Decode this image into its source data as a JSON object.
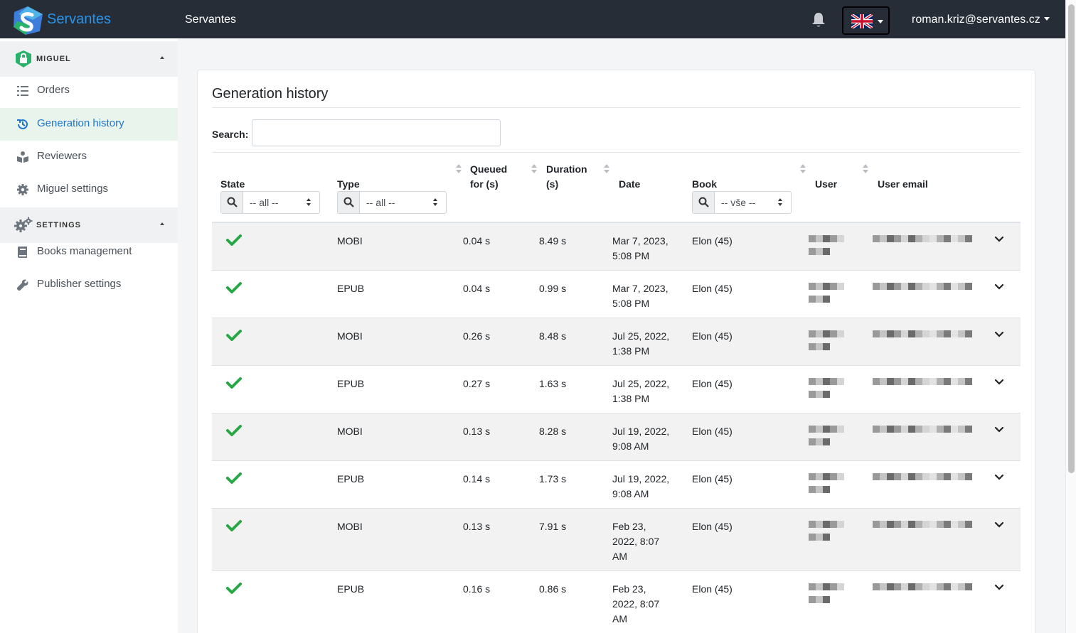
{
  "header": {
    "logo_text": "Servantes",
    "app_title": "Servantes",
    "user_email": "roman.kriz@servantes.cz",
    "icons": {
      "notifications": "bell-icon",
      "language": "uk-flag-icon"
    }
  },
  "sidebar": {
    "sections": [
      {
        "title": "MIGUEL",
        "icon": "lock-badge-icon",
        "items": [
          {
            "label": "Orders",
            "icon": "list-icon",
            "active": false
          },
          {
            "label": "Generation history",
            "icon": "history-icon",
            "active": true
          },
          {
            "label": "Reviewers",
            "icon": "reviewers-icon",
            "active": false
          },
          {
            "label": "Miguel settings",
            "icon": "gear-icon",
            "active": false
          }
        ]
      },
      {
        "title": "SETTINGS",
        "icon": "gears-icon",
        "items": [
          {
            "label": "Books management",
            "icon": "book-icon",
            "active": false
          },
          {
            "label": "Publisher settings",
            "icon": "wrench-icon",
            "active": false
          }
        ]
      }
    ]
  },
  "main": {
    "title": "Generation history",
    "search": {
      "label": "Search:",
      "value": ""
    },
    "columns": {
      "state": "State",
      "type": "Type",
      "queued_line1": "Queued",
      "queued_line2": "for (s)",
      "duration_line1": "Duration",
      "duration_line2": "(s)",
      "date": "Date",
      "book": "Book",
      "user": "User",
      "user_email": "User email"
    },
    "filters": {
      "state": "-- all --",
      "type": "-- all --",
      "book": "-- vše --"
    },
    "rows": [
      {
        "state": "success",
        "type": "MOBI",
        "queued": "0.04 s",
        "duration": "8.49 s",
        "date_l1": "Mar 7, 2023,",
        "date_l2": "5:08 PM",
        "date_l3": "",
        "book": "Elon (45)"
      },
      {
        "state": "success",
        "type": "EPUB",
        "queued": "0.04 s",
        "duration": "0.99 s",
        "date_l1": "Mar 7, 2023,",
        "date_l2": "5:08 PM",
        "date_l3": "",
        "book": "Elon (45)"
      },
      {
        "state": "success",
        "type": "MOBI",
        "queued": "0.26 s",
        "duration": "8.48 s",
        "date_l1": "Jul 25, 2022,",
        "date_l2": "1:38 PM",
        "date_l3": "",
        "book": "Elon (45)"
      },
      {
        "state": "success",
        "type": "EPUB",
        "queued": "0.27 s",
        "duration": "1.63 s",
        "date_l1": "Jul 25, 2022,",
        "date_l2": "1:38 PM",
        "date_l3": "",
        "book": "Elon (45)"
      },
      {
        "state": "success",
        "type": "MOBI",
        "queued": "0.13 s",
        "duration": "8.28 s",
        "date_l1": "Jul 19, 2022,",
        "date_l2": "9:08 AM",
        "date_l3": "",
        "book": "Elon (45)"
      },
      {
        "state": "success",
        "type": "EPUB",
        "queued": "0.14 s",
        "duration": "1.73 s",
        "date_l1": "Jul 19, 2022,",
        "date_l2": "9:08 AM",
        "date_l3": "",
        "book": "Elon (45)"
      },
      {
        "state": "success",
        "type": "MOBI",
        "queued": "0.13 s",
        "duration": "7.91 s",
        "date_l1": "Feb 23,",
        "date_l2": "2022, 8:07",
        "date_l3": "AM",
        "book": "Elon (45)"
      },
      {
        "state": "success",
        "type": "EPUB",
        "queued": "0.16 s",
        "duration": "0.86 s",
        "date_l1": "Feb 23,",
        "date_l2": "2022, 8:07",
        "date_l3": "AM",
        "book": "Elon (45)"
      }
    ]
  }
}
